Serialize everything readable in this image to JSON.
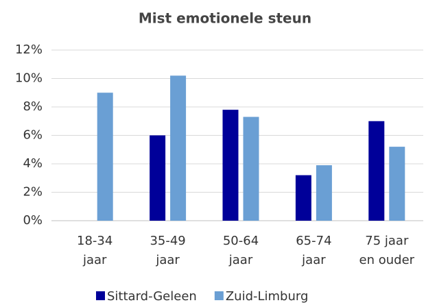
{
  "chart_data": {
    "type": "bar",
    "title": "Mist emotionele steun",
    "categories": [
      "18-34 jaar",
      "35-49 jaar",
      "50-64 jaar",
      "65-74 jaar",
      "75 jaar en ouder"
    ],
    "series": [
      {
        "name": "Sittard-Geleen",
        "color": "#000099",
        "values": [
          null,
          6.0,
          7.8,
          3.2,
          7.0
        ]
      },
      {
        "name": "Zuid-Limburg",
        "color": "#6a9fd4",
        "values": [
          9.0,
          10.2,
          7.3,
          3.9,
          5.2
        ]
      }
    ],
    "ylim": [
      0,
      12
    ],
    "yticks": [
      {
        "value": 0,
        "label": "0%"
      },
      {
        "value": 2,
        "label": "2%"
      },
      {
        "value": 4,
        "label": "4%"
      },
      {
        "value": 6,
        "label": "6%"
      },
      {
        "value": 8,
        "label": "8%"
      },
      {
        "value": 10,
        "label": "10%"
      },
      {
        "value": 12,
        "label": "12%"
      }
    ],
    "grid": true,
    "legend": "bottom"
  }
}
